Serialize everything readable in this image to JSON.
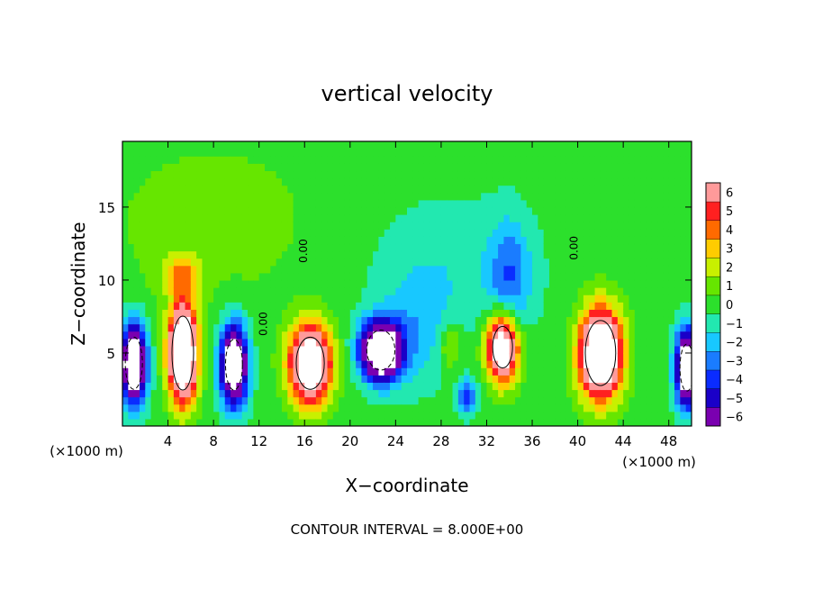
{
  "chart_data": {
    "type": "heatmap",
    "title": "vertical velocity",
    "xlabel": "X−coordinate",
    "ylabel": "Z−coordinate",
    "x_unit": "(×1000 m)",
    "footer": "CONTOUR INTERVAL = 8.000E+00",
    "xlim": [
      0,
      50
    ],
    "ylim": [
      0,
      19.5
    ],
    "xticks": [
      4,
      8,
      12,
      16,
      20,
      24,
      28,
      32,
      36,
      40,
      44,
      48
    ],
    "yticks": [
      5,
      10,
      15
    ],
    "colorbar": {
      "levels": [
        -6,
        -5,
        -4,
        -3,
        -2,
        -1,
        0,
        1,
        2,
        3,
        4,
        5,
        6
      ],
      "tick_labels": [
        "−6",
        "−5",
        "−4",
        "−3",
        "−2",
        "−1",
        "0",
        "1",
        "2",
        "3",
        "4",
        "5",
        "6"
      ],
      "colors": [
        "#7a00b0",
        "#1a00c8",
        "#0a2cff",
        "#1a7cff",
        "#18c8ff",
        "#22e8b0",
        "#2ce02c",
        "#66e600",
        "#c8f000",
        "#ffcc00",
        "#ff6a00",
        "#ff2020",
        "#ff9a9a"
      ]
    },
    "contour_labels": [
      "0.00",
      "0.00",
      "0.00"
    ],
    "cells": [
      {
        "x": 1.0,
        "z": 4.3,
        "sx": 1.1,
        "sz": 2.6,
        "amp": -12
      },
      {
        "x": 5.3,
        "z": 5.0,
        "sx": 1.2,
        "sz": 3.2,
        "amp": 14
      },
      {
        "x": 5.2,
        "z": 10.5,
        "sx": 1.8,
        "sz": 1.4,
        "amp": 3
      },
      {
        "x": 9.8,
        "z": 4.2,
        "sx": 1.2,
        "sz": 2.8,
        "amp": -11
      },
      {
        "x": 16.5,
        "z": 4.3,
        "sx": 1.8,
        "sz": 2.6,
        "amp": 12
      },
      {
        "x": 22.7,
        "z": 5.2,
        "sx": 1.8,
        "sz": 2.0,
        "amp": -12
      },
      {
        "x": 26.0,
        "z": 6.5,
        "sx": 3.0,
        "sz": 4.0,
        "amp": -1.8
      },
      {
        "x": 28.8,
        "z": 5.5,
        "sx": 1.0,
        "sz": 1.6,
        "amp": 2.5
      },
      {
        "x": 30.3,
        "z": 2.0,
        "sx": 0.9,
        "sz": 1.2,
        "amp": -4
      },
      {
        "x": 33.4,
        "z": 5.4,
        "sx": 1.4,
        "sz": 2.3,
        "amp": 11
      },
      {
        "x": 34.0,
        "z": 10.0,
        "sx": 1.8,
        "sz": 4.0,
        "amp": -3
      },
      {
        "x": 42.0,
        "z": 5.0,
        "sx": 1.8,
        "sz": 3.0,
        "amp": 13
      },
      {
        "x": 49.6,
        "z": 4.0,
        "sx": 1.0,
        "sz": 2.6,
        "amp": -11
      },
      {
        "x": 29.0,
        "z": 11.0,
        "sx": 8.0,
        "sz": 5.0,
        "amp": -1.2
      },
      {
        "x": 8.0,
        "z": 14.0,
        "sx": 10.0,
        "sz": 6.0,
        "amp": 0.9
      }
    ]
  }
}
